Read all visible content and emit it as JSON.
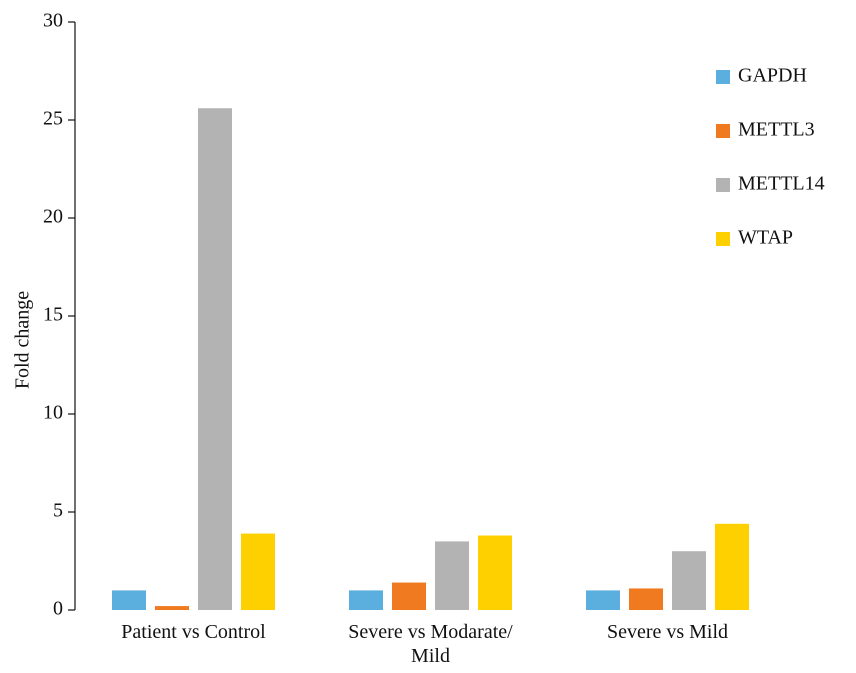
{
  "chart_data": {
    "type": "bar",
    "ylabel": "Fold change",
    "categories": [
      "Patient vs Control",
      "Severe vs Modarate/\nMild",
      "Severe vs Mild"
    ],
    "series": [
      {
        "name": "GAPDH",
        "color": "#5aafdf",
        "values": [
          1,
          1,
          1
        ]
      },
      {
        "name": "METTL3",
        "color": "#f07a1f",
        "values": [
          0.2,
          1.4,
          1.1
        ]
      },
      {
        "name": "METTL14",
        "color": "#b3b3b3",
        "values": [
          25.6,
          3.5,
          3.0
        ]
      },
      {
        "name": "WTAP",
        "color": "#ffd000",
        "values": [
          3.9,
          3.8,
          4.4
        ]
      }
    ],
    "ylim": [
      0,
      30
    ],
    "yticks": [
      0,
      5,
      10,
      15,
      20,
      25,
      30
    ],
    "legend": "upper right"
  }
}
